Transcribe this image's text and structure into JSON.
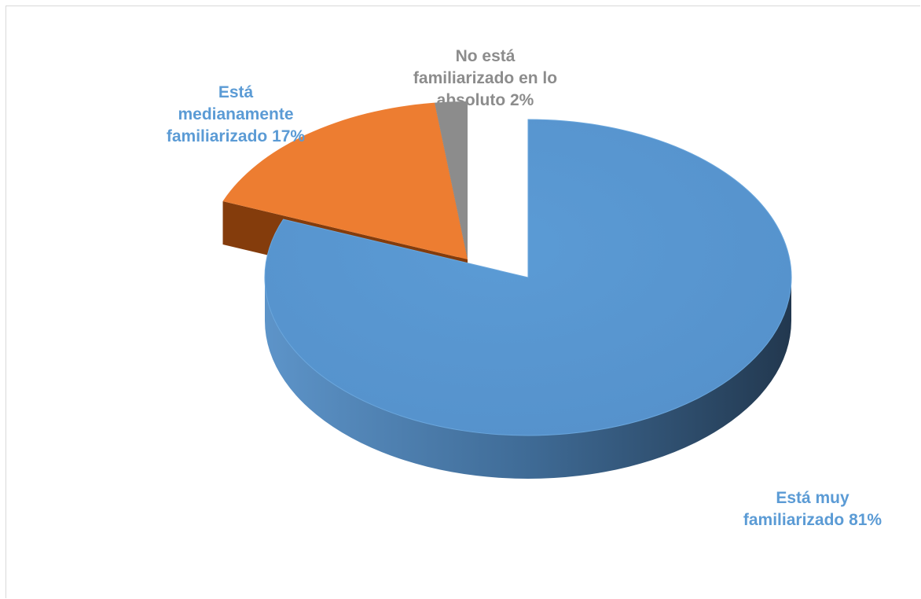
{
  "chart_data": {
    "type": "pie",
    "title": "",
    "slices": [
      {
        "name": "Está muy familiarizado",
        "value": 81,
        "label_lines": [
          "Está muy",
          "familiarizado 81%"
        ],
        "color": "#5b9bd5",
        "side_color": "#41719c"
      },
      {
        "name": "Está medianamente familiarizado",
        "value": 17,
        "label_lines": [
          "Está",
          "medianamente",
          "familiarizado  17%"
        ],
        "color": "#ed7d31",
        "side_color": "#843c0c"
      },
      {
        "name": "No está familiarizado en lo absoluto",
        "value": 2,
        "label_lines": [
          "No está",
          "familiarizado en lo",
          "absoluto 2%"
        ],
        "color": "#8c8c8c",
        "side_color": "#595959"
      }
    ],
    "label_colors": [
      "#5b9bd5",
      "#5b9bd5",
      "#8c8c8c"
    ],
    "exploded": true,
    "style": "3d"
  }
}
